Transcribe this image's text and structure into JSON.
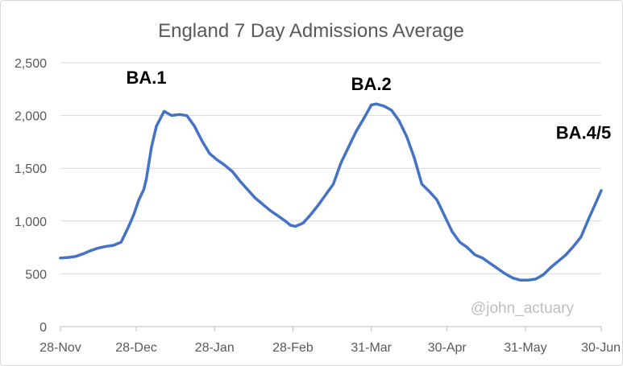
{
  "chart_data": {
    "type": "line",
    "title": "England 7 Day Admissions Average",
    "xlabel": "",
    "ylabel": "",
    "ylim": [
      0,
      2500
    ],
    "yticks": [
      0,
      500,
      1000,
      1500,
      2000,
      2500
    ],
    "ytick_labels": [
      "0",
      "500",
      "1,000",
      "1,500",
      "2,000",
      "2,500"
    ],
    "xlim": [
      "2021-11-28",
      "2022-06-30"
    ],
    "xticks": [
      "2021-11-28",
      "2021-12-28",
      "2022-01-28",
      "2022-02-28",
      "2022-03-31",
      "2022-04-30",
      "2022-05-31",
      "2022-06-30"
    ],
    "xtick_labels": [
      "28-Nov",
      "28-Dec",
      "28-Jan",
      "28-Feb",
      "31-Mar",
      "30-Apr",
      "31-May",
      "30-Jun"
    ],
    "grid": "horizontal",
    "line_color": "#4472c4",
    "series": [
      {
        "x": [
          "2021-11-28",
          "2021-12-01",
          "2021-12-04",
          "2021-12-07",
          "2021-12-10",
          "2021-12-13",
          "2021-12-16",
          "2021-12-19",
          "2021-12-22",
          "2021-12-25",
          "2021-12-27",
          "2021-12-29",
          "2021-12-31",
          "2022-01-01",
          "2022-01-03",
          "2022-01-05",
          "2022-01-08",
          "2022-01-11",
          "2022-01-14",
          "2022-01-17",
          "2022-01-20",
          "2022-01-23",
          "2022-01-26",
          "2022-01-29",
          "2022-02-01",
          "2022-02-04",
          "2022-02-07",
          "2022-02-10",
          "2022-02-13",
          "2022-02-16",
          "2022-02-19",
          "2022-02-22",
          "2022-02-25",
          "2022-02-27",
          "2022-03-01",
          "2022-03-04",
          "2022-03-07",
          "2022-03-10",
          "2022-03-13",
          "2022-03-16",
          "2022-03-19",
          "2022-03-22",
          "2022-03-25",
          "2022-03-28",
          "2022-03-31",
          "2022-04-02",
          "2022-04-05",
          "2022-04-08",
          "2022-04-11",
          "2022-04-14",
          "2022-04-17",
          "2022-04-20",
          "2022-04-23",
          "2022-04-26",
          "2022-04-29",
          "2022-05-02",
          "2022-05-05",
          "2022-05-08",
          "2022-05-11",
          "2022-05-14",
          "2022-05-17",
          "2022-05-20",
          "2022-05-23",
          "2022-05-26",
          "2022-05-29",
          "2022-06-01",
          "2022-06-04",
          "2022-06-07",
          "2022-06-10",
          "2022-06-13",
          "2022-06-16",
          "2022-06-19",
          "2022-06-22",
          "2022-06-25",
          "2022-06-28",
          "2022-06-30"
        ],
        "y": [
          650,
          655,
          665,
          690,
          720,
          745,
          760,
          770,
          800,
          950,
          1060,
          1200,
          1300,
          1400,
          1700,
          1900,
          2040,
          2000,
          2010,
          2000,
          1900,
          1760,
          1640,
          1580,
          1530,
          1470,
          1380,
          1300,
          1220,
          1160,
          1100,
          1050,
          1000,
          960,
          950,
          980,
          1060,
          1150,
          1250,
          1350,
          1550,
          1700,
          1850,
          1970,
          2100,
          2110,
          2090,
          2050,
          1950,
          1800,
          1600,
          1350,
          1280,
          1200,
          1050,
          900,
          800,
          750,
          680,
          650,
          600,
          550,
          500,
          460,
          440,
          440,
          450,
          490,
          560,
          620,
          680,
          760,
          850,
          1020,
          1180,
          1290
        ]
      }
    ],
    "annotations": [
      {
        "text": "BA.1",
        "x": "2022-01-01",
        "y": 2300
      },
      {
        "text": "BA.2",
        "x": "2022-03-31",
        "y": 2240
      },
      {
        "text": "BA.4/5",
        "x": "2022-06-23",
        "y": 1780
      }
    ],
    "credit": "@john_actuary"
  }
}
